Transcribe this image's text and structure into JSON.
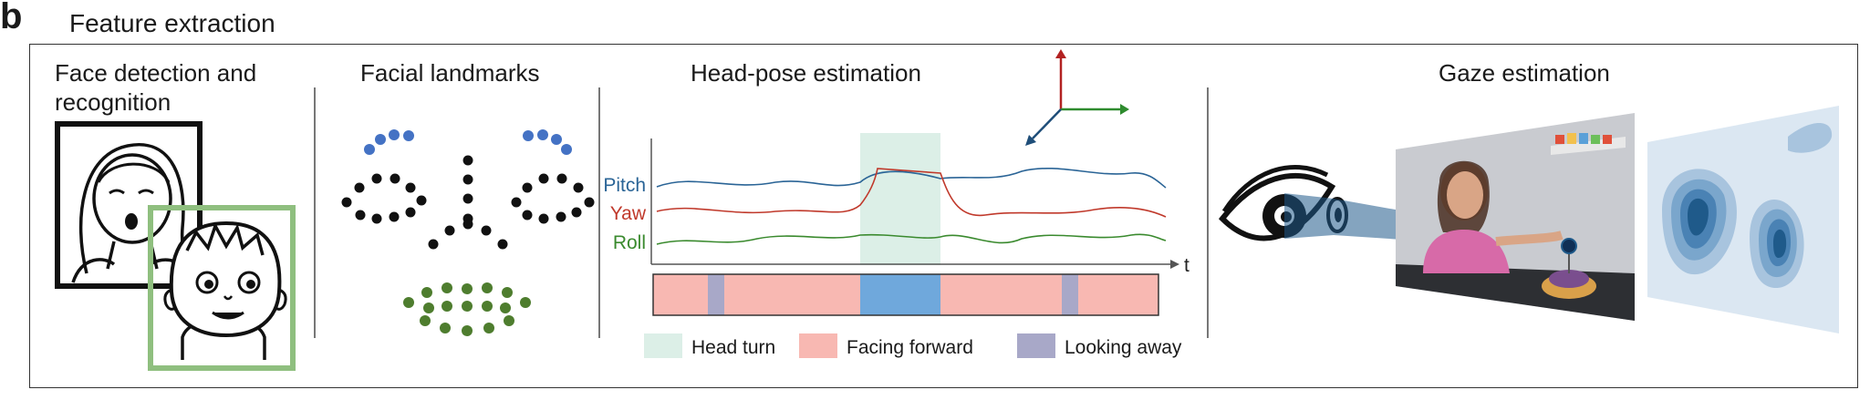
{
  "panel": {
    "letter": "b",
    "title": "Feature extraction"
  },
  "sections": {
    "face": {
      "title": "Face detection and recognition"
    },
    "landmarks": {
      "title": "Facial landmarks"
    },
    "headpose": {
      "title": "Head-pose estimation",
      "series": [
        "Pitch",
        "Yaw",
        "Roll"
      ],
      "time_label": "t",
      "legend": [
        "Head turn",
        "Facing forward",
        "Looking away"
      ]
    },
    "gaze": {
      "title": "Gaze estimation"
    }
  },
  "colors": {
    "pitch": "#2a6496",
    "yaw": "#c0392b",
    "roll": "#3a8a2e",
    "head_turn": "#dcefe7",
    "facing_forward": "#f8b8b2",
    "looking_away": "#a8a8c8",
    "timeline_head_turn": "#6fa8dc",
    "landmark_blue": "#4472c4",
    "landmark_green": "#4e7d2e",
    "face_box_green": "#8fbf7f",
    "gaze_blue": "#1f5a8a",
    "axis_up": "#b22222",
    "axis_right": "#2e8b2e",
    "axis_diag": "#1f4e79"
  },
  "icons": [
    "adult-face-icon",
    "child-face-icon",
    "eye-icon",
    "scene-image",
    "heatmap-icon",
    "3d-axes-icon"
  ]
}
